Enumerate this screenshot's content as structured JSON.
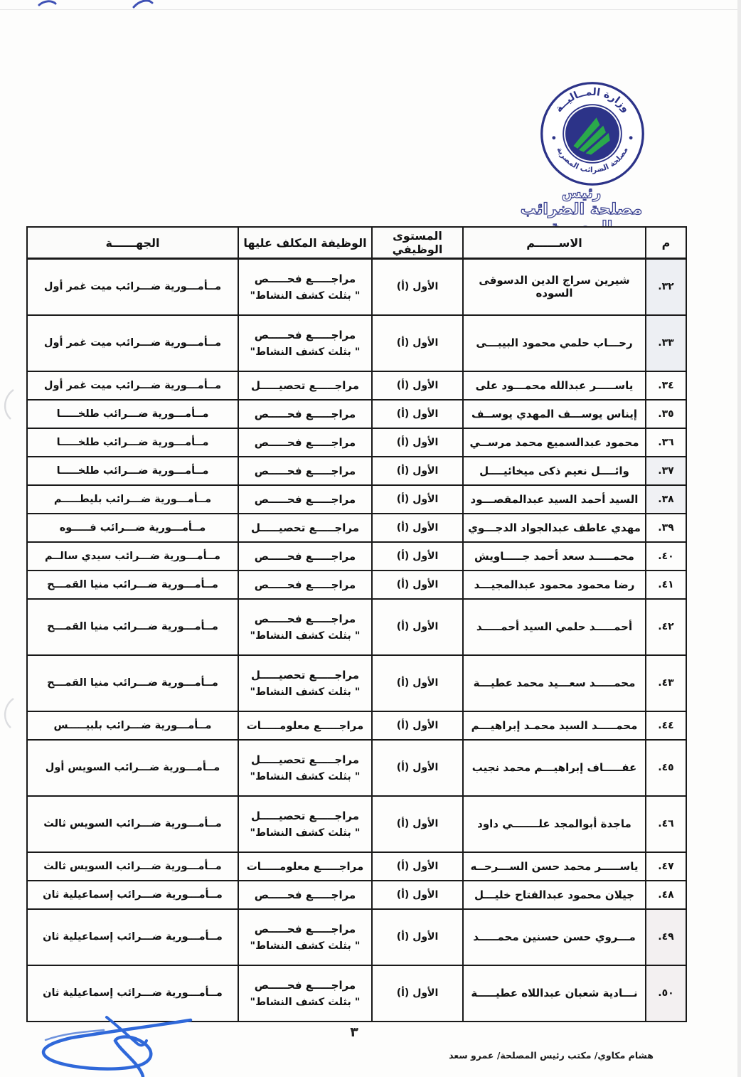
{
  "colors": {
    "seal_navy": "#2c3388",
    "seal_green": "#2aa94b",
    "title_outline": "#3c4392",
    "table_border": "#191919",
    "signature_blue": "#2f68d9"
  },
  "document": {
    "letterhead": {
      "seal": {
        "top_text": "وزارة المــاليــة",
        "bottom_text": "مصلحة الضرائب المصرية"
      },
      "title_line1": "رئيس",
      "title_line2": "مصلحة الضرائب المصرية"
    },
    "table": {
      "headers": {
        "no": "م",
        "name": "الاســــــم",
        "level": "المستوى الوظيفي",
        "job": "الوظيفة المكلف عليها",
        "dept": "الجهــــــة"
      },
      "rows": [
        {
          "no": "٣٢.",
          "name": "شيرين سراج الدين الدسوقى السوده",
          "level": "الأول (أ)",
          "job": "مراجـــــع فحـــــص",
          "job_note": "\" بثلث كشف النشاط\"",
          "dept": "مــأمـــورية ضـــرائب ميت غمر أول"
        },
        {
          "no": "٣٣.",
          "name": "رحـــاب حلمي محمود البيبـــى",
          "level": "الأول (أ)",
          "job": "مراجـــــع فحـــــص",
          "job_note": "\" بثلث كشف النشاط\"",
          "dept": "مــأمـــورية ضـــرائب ميت غمر أول"
        },
        {
          "no": "٣٤.",
          "name": "ياســـــر عبدالله محمـــود على",
          "level": "الأول (أ)",
          "job": "مراجـــــع تحصيـــــل",
          "dept": "مــأمـــورية ضـــرائب ميت غمر أول"
        },
        {
          "no": "٣٥.",
          "name": "إيناس يوســـف المهدي يوســف",
          "level": "الأول (أ)",
          "job": "مراجـــــع فحـــــص",
          "dept": "مــأمـــورية ضـــرائب طلخـــــا"
        },
        {
          "no": "٣٦.",
          "name": "محمود عبدالسميع محمد مرســي",
          "level": "الأول (أ)",
          "job": "مراجـــــع فحـــــص",
          "dept": "مــأمـــورية ضـــرائب طلخـــــا"
        },
        {
          "no": "٣٧.",
          "name": "وائــــل نعيم ذكى ميخائيــــل",
          "level": "الأول (أ)",
          "job": "مراجـــــع فحـــــص",
          "dept": "مــأمـــورية ضـــرائب طلخـــــا"
        },
        {
          "no": "٣٨.",
          "name": "السيد أحمد السيد عبدالمقصـــود",
          "level": "الأول (أ)",
          "job": "مراجـــــع فحـــــص",
          "dept": "مــأمـــورية ضـــرائب بليطـــــم"
        },
        {
          "no": "٣٩.",
          "name": "مهدي عاطف عبدالجواد الدجـــوي",
          "level": "الأول (أ)",
          "job": "مراجـــــع تحصيـــــل",
          "dept": "مــأمـــورية ضـــرائب فـــــوه"
        },
        {
          "no": "٤٠.",
          "name": "محمـــــد سعد أحمد جـــــاويش",
          "level": "الأول (أ)",
          "job": "مراجـــــع فحـــــص",
          "dept": "مــأمـــورية ضـــرائب سيدي سالــم"
        },
        {
          "no": "٤١.",
          "name": "رضا محمود محمود عبدالمجيـــد",
          "level": "الأول (أ)",
          "job": "مراجـــــع فحـــــص",
          "dept": "مــأمـــورية ضـــرائب منيا القمـــح"
        },
        {
          "no": "٤٢.",
          "name": "أحمـــــد حلمي السيد أحمـــــد",
          "level": "الأول (أ)",
          "job": "مراجـــــع فحـــــص",
          "job_note": "\" بثلث كشف النشاط\"",
          "dept": "مــأمـــورية ضـــرائب منيا القمـــح"
        },
        {
          "no": "٤٣.",
          "name": "محمـــــد سعـــيد محمد عطيـــة",
          "level": "الأول (أ)",
          "job": "مراجـــــع تحصيـــــل",
          "job_note": "\" بثلث كشف النشاط\"",
          "dept": "مــأمـــورية ضـــرائب منيا القمـــح"
        },
        {
          "no": "٤٤.",
          "name": "محمـــــد السيد محمـد إبراهيـــم",
          "level": "الأول (أ)",
          "job": "مراجـــــع معلومـــــات",
          "dept": "مــأمـــورية ضـــرائب بلبيـــــس"
        },
        {
          "no": "٤٥.",
          "name": "عفـــــاف إبراهيـــم محمد نجيب",
          "level": "الأول (أ)",
          "job": "مراجـــــع تحصيـــــل",
          "job_note": "\" بثلث كشف النشاط\"",
          "dept": "مــأمـــورية ضـــرائب السويس أول"
        },
        {
          "no": "٤٦.",
          "name": "ماجدة أبوالمجد علـــــــي داود",
          "level": "الأول (أ)",
          "job": "مراجـــــع تحصيـــــل",
          "job_note": "\" بثلث كشف النشاط\"",
          "dept": "مــأمـــورية ضـــرائب السويس ثالث"
        },
        {
          "no": "٤٧.",
          "name": "ياســـــر محمد حسن الســـرحــه",
          "level": "الأول (أ)",
          "job": "مراجـــــع معلومـــــات",
          "dept": "مــأمـــورية ضـــرائب السويس ثالث"
        },
        {
          "no": "٤٨.",
          "name": "جيلان محمود عبدالفتاح خليـــل",
          "level": "الأول (أ)",
          "job": "مراجـــــع فحـــــص",
          "dept": "مــأمـــورية ضـــرائب إسماعيلية ثان"
        },
        {
          "no": "٤٩.",
          "name": "مـــروي حسن حسنين محمـــــد",
          "level": "الأول (أ)",
          "job": "مراجـــــع فحـــــص",
          "job_note": "\" بثلث كشف النشاط\"",
          "dept": "مــأمـــورية ضـــرائب إسماعيلية ثان"
        },
        {
          "no": "٥٠.",
          "name": "نـــادية شعبان عبداللاه عطيـــــة",
          "level": "الأول (أ)",
          "job": "مراجـــــع فحـــــص",
          "job_note": "\" بثلث كشف النشاط\"",
          "dept": "مــأمـــورية ضـــرائب إسماعيلية ثان"
        }
      ]
    },
    "footer": {
      "page_number": "٣",
      "credit": "هشام مكاوي/ مكتب رئيس المصلحة/ عمرو سعد"
    }
  }
}
